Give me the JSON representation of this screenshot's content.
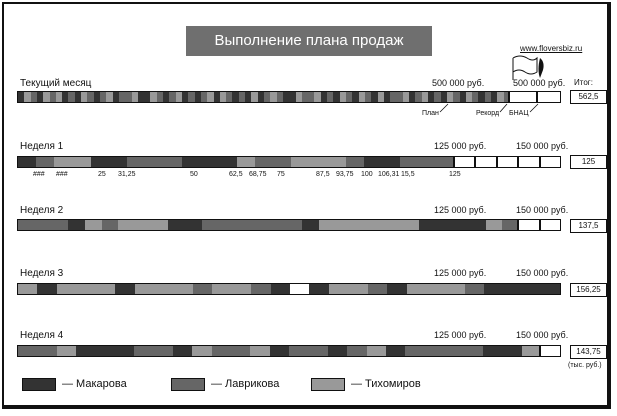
{
  "title": "Выполнение плана продаж",
  "site": "www.floversbiz.ru",
  "itog_label": "Итог:",
  "unit_note": "(тыс. руб.)",
  "colors": {
    "makarova": "#333333",
    "lavrikova": "#666666",
    "tikhomirov": "#999999",
    "bg": "#ffffff"
  },
  "month": {
    "label": "Текущий месяц",
    "plan_amount": "500 000 руб.",
    "record_amount": "500 000 руб.",
    "total": "562,5",
    "annotations": {
      "plan": "План",
      "record": "Рекорд",
      "bnats": "БНАЦ"
    }
  },
  "weeks": [
    {
      "label": "Неделя 1",
      "plan_amount": "125 000 руб.",
      "record_amount": "150 000 руб.",
      "total": "125",
      "ticks": [
        "###",
        "###",
        "25",
        "31,25",
        "50",
        "62,5",
        "68,75",
        "75",
        "87,5",
        "93,75",
        "100",
        "106,31",
        "15,5",
        "125"
      ]
    },
    {
      "label": "Неделя 2",
      "plan_amount": "125 000 руб.",
      "record_amount": "150 000 руб.",
      "total": "137,5"
    },
    {
      "label": "Неделя 3",
      "plan_amount": "125 000 руб.",
      "record_amount": "150 000 руб.",
      "total": "156,25"
    },
    {
      "label": "Неделя 4",
      "plan_amount": "125 000 руб.",
      "record_amount": "150 000 руб.",
      "total": "143,75"
    }
  ],
  "legend": [
    {
      "name": "— Макарова",
      "color": "#333333"
    },
    {
      "name": "— Лаврикова",
      "color": "#666666"
    },
    {
      "name": "— Тихомиров",
      "color": "#999999"
    }
  ]
}
